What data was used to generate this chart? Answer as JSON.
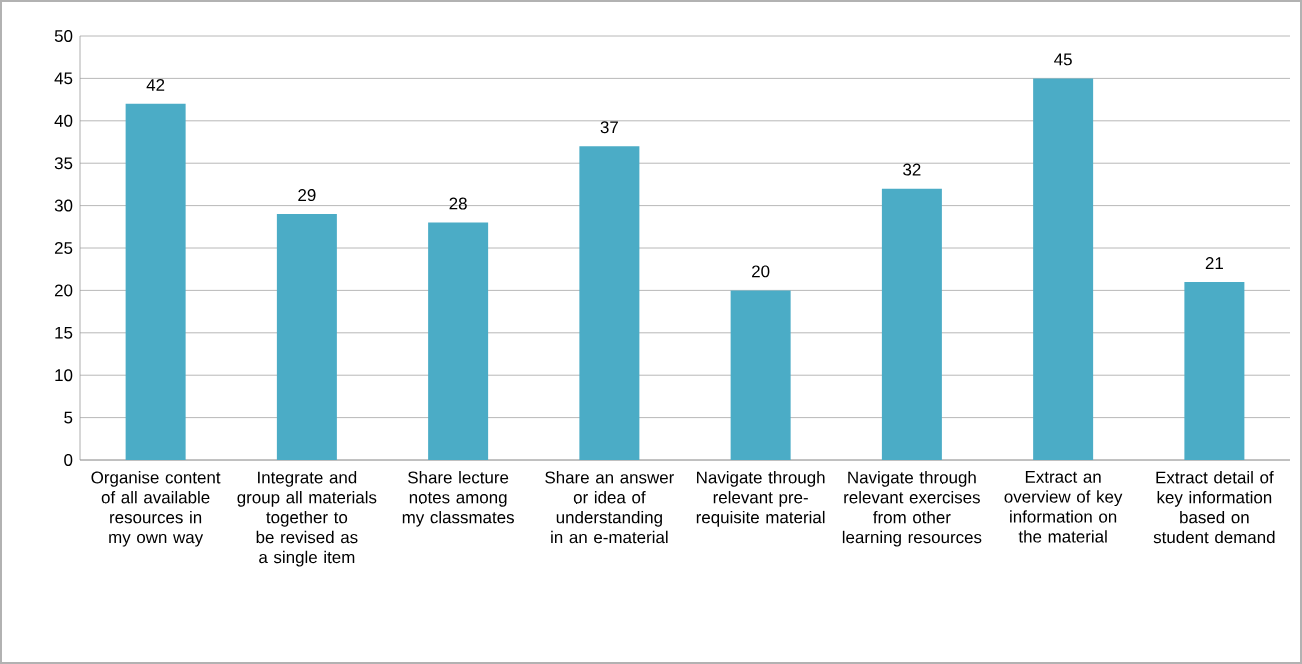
{
  "chart_data": {
    "type": "bar",
    "categories": [
      "Organise content of all available resources in my own way",
      "Integrate and group all materials together to be revised as a single item",
      "Share lecture notes among my classmates",
      "Share an answer or idea of understanding in an e-material",
      "Navigate through relevant pre-requisite material",
      "Navigate through relevant exercises from other learning resources",
      "Extract an overview of key information on the material",
      "Extract detail of key information based on student demand"
    ],
    "values": [
      42,
      29,
      28,
      37,
      20,
      32,
      45,
      21
    ],
    "color": "#4bacc6",
    "ylim": [
      0,
      50
    ],
    "yticks": [
      0,
      5,
      10,
      15,
      20,
      25,
      30,
      35,
      40,
      45,
      50
    ],
    "grid": "y",
    "data_labels": true
  }
}
